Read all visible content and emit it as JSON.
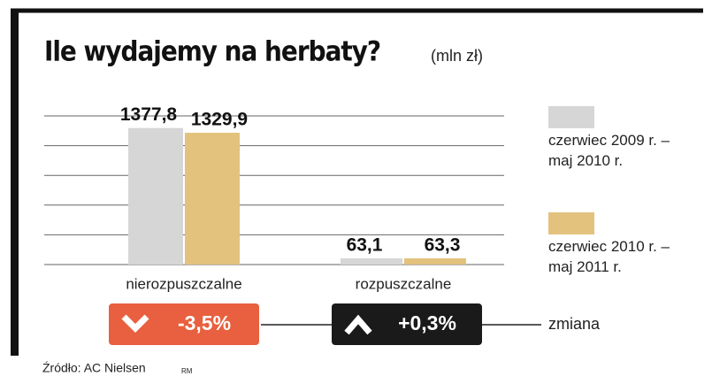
{
  "chart_data": {
    "type": "bar",
    "title": "Ile wydajemy na herbaty?",
    "subtitle": "(mln zł)",
    "categories": [
      "nierozpuszczalne",
      "rozpuszczalne"
    ],
    "series": [
      {
        "name": "czerwiec 2009 r. – maj 2010 r.",
        "color": "#d6d6d6",
        "values": [
          1377.8,
          63.1
        ],
        "value_labels": [
          "1377,8",
          "63,1"
        ]
      },
      {
        "name": "czerwiec 2010 r. – maj 2011 r.",
        "color": "#e3c27d",
        "values": [
          1329.9,
          63.3
        ],
        "value_labels": [
          "1329,9",
          "63,3"
        ]
      }
    ],
    "ylim": [
      0,
      1500
    ],
    "yticks": [
      0,
      300,
      600,
      900,
      1200,
      1500
    ],
    "grid": true,
    "legend": "right",
    "changes": {
      "labels": [
        "-3,5%",
        "+0,3%"
      ],
      "colors": [
        "#e8603f",
        "#1a1a1a"
      ],
      "title": "zmiana"
    },
    "source": "Źródło: AC Nielsen",
    "credit": "RM"
  }
}
